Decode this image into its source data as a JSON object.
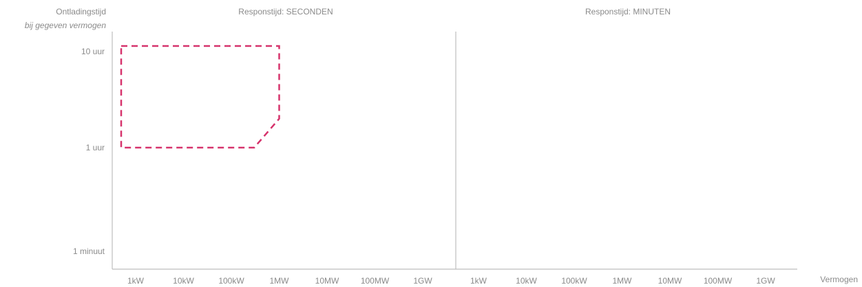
{
  "chart_data": {
    "type": "area",
    "ylabel": "Ontladingstijd",
    "ylabel_sub": "bij gegeven vermogen",
    "xlabel": "Vermogen",
    "y_scale": "log",
    "y_ticks": [
      "10 uur",
      "1 uur",
      "1 minuut"
    ],
    "grid": false,
    "panels": [
      {
        "title": "Responstijd: SECONDEN",
        "x_ticks": [
          "1kW",
          "10kW",
          "100kW",
          "1MW",
          "10MW",
          "100MW",
          "1GW"
        ],
        "regions": [
          {
            "style": "dashed",
            "color": "#d6336c",
            "points": [
              {
                "x": "1kW",
                "y": "10 uur"
              },
              {
                "x": "1MW",
                "y": "10 uur"
              },
              {
                "x": "1MW",
                "y": "2 uur"
              },
              {
                "x": "300kW",
                "y": "1 uur"
              },
              {
                "x": "1kW",
                "y": "1 uur"
              }
            ]
          }
        ]
      },
      {
        "title": "Responstijd: MINUTEN",
        "x_ticks": [
          "1kW",
          "10kW",
          "100kW",
          "1MW",
          "10MW",
          "100MW",
          "1GW"
        ],
        "regions": []
      }
    ]
  }
}
